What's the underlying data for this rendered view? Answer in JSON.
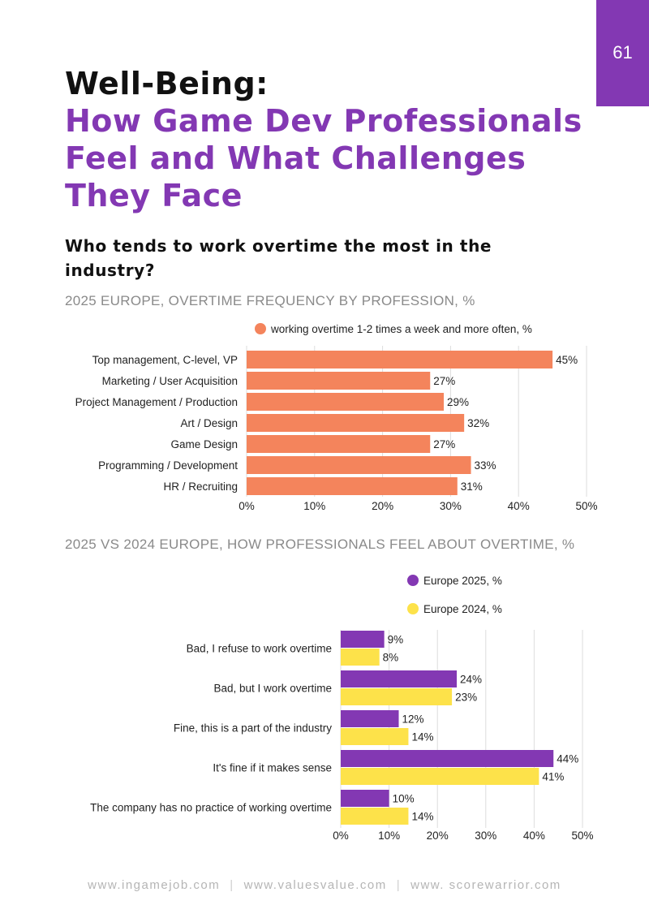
{
  "page_number": "61",
  "title": {
    "line1": "Well-Being:",
    "main_lines": [
      "How Game Dev Professionals",
      "Feel and What Challenges",
      "They Face"
    ]
  },
  "question": "Who tends to work overtime the most in the industry?",
  "footer": {
    "links": [
      "www.ingamejob.com",
      "www.valuesvalue.com",
      "www. scorewarrior.com"
    ],
    "separator": "|"
  },
  "colors": {
    "accent": "#8338b3",
    "orange": "#f4845c",
    "yellow": "#fde24a",
    "grid": "#dddddd"
  },
  "chart_data": [
    {
      "type": "bar",
      "orientation": "horizontal",
      "title": "2025 EUROPE, OVERTIME FREQUENCY BY PROFESSION, %",
      "legend_position": "top",
      "categories": [
        "Top management, C-level, VP",
        "Marketing / User Acquisition",
        "Project Management / Production",
        "Art / Design",
        "Game Design",
        "Programming / Development",
        "HR / Recruiting"
      ],
      "series": [
        {
          "name": "working overtime 1-2 times a week and more often, %",
          "values": [
            45,
            27,
            29,
            32,
            27,
            33,
            31
          ],
          "color": "#f4845c"
        }
      ],
      "xlim": [
        0,
        50
      ],
      "xticks": [
        0,
        10,
        20,
        30,
        40,
        50
      ],
      "tick_suffix": "%",
      "label_suffix": "%",
      "grid": true
    },
    {
      "type": "bar",
      "orientation": "horizontal",
      "title": "2025 VS 2024 EUROPE, HOW PROFESSIONALS FEEL ABOUT OVERTIME, %",
      "legend_position": "top-right",
      "categories": [
        "Bad, I refuse to work overtime",
        "Bad, but I work overtime",
        "Fine, this is a part of the industry",
        "It's fine if it makes sense",
        "The company has no practice of working overtime"
      ],
      "series": [
        {
          "name": "Europe 2025, %",
          "values": [
            9,
            24,
            12,
            44,
            10
          ],
          "color": "#8338b3"
        },
        {
          "name": "Europe 2024, %",
          "values": [
            8,
            23,
            14,
            41,
            14
          ],
          "color": "#fde24a"
        }
      ],
      "xlim": [
        0,
        50
      ],
      "xticks": [
        0,
        10,
        20,
        30,
        40,
        50
      ],
      "tick_suffix": "%",
      "label_suffix": "%",
      "grid": true
    }
  ]
}
